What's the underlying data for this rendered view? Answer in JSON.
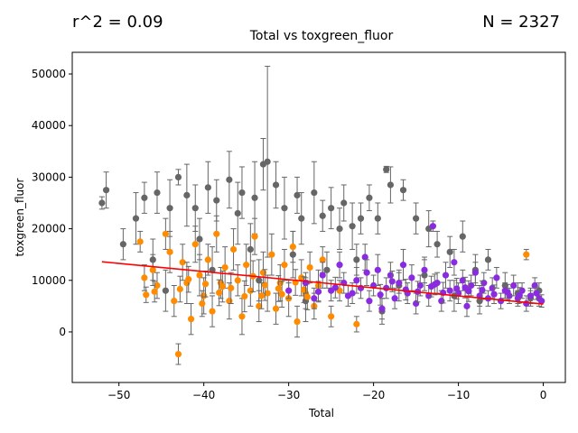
{
  "header": {
    "r2_text": "r^2 = 0.09",
    "n_text": "N = 2327"
  },
  "chart_data": {
    "type": "scatter",
    "title": "Total vs toxgreen_fluor",
    "xlabel": "Total",
    "ylabel": "toxgreen_fluor",
    "xlim": [
      -55.5,
      2.6
    ],
    "ylim": [
      -9800,
      54200
    ],
    "xticks": [
      -50,
      -40,
      -30,
      -20,
      -10,
      0
    ],
    "xtick_labels": [
      "−50",
      "−40",
      "−30",
      "−20",
      "−10",
      "0"
    ],
    "yticks": [
      0,
      10000,
      20000,
      30000,
      40000,
      50000
    ],
    "ytick_labels": [
      "0",
      "10000",
      "20000",
      "30000",
      "40000",
      "50000"
    ],
    "grid": false,
    "legend": "none",
    "regression_line": {
      "x": [
        -52,
        0
      ],
      "y": [
        13600,
        5400
      ],
      "color": "#ff0000"
    },
    "series": [
      {
        "color": "#666666",
        "error_bars": true,
        "points": [
          [
            -52,
            25000,
            1200
          ],
          [
            -51.5,
            27500,
            3500
          ],
          [
            -48,
            22000,
            5000
          ],
          [
            -47,
            26000,
            3000
          ],
          [
            -45.5,
            27000,
            4000
          ],
          [
            -44,
            24000,
            5500
          ],
          [
            -43,
            30000,
            1500
          ],
          [
            -42,
            26500,
            6000
          ],
          [
            -41,
            24000,
            4500
          ],
          [
            -39.5,
            28000,
            5000
          ],
          [
            -38.5,
            25500,
            4000
          ],
          [
            -37,
            29500,
            5500
          ],
          [
            -36,
            23000,
            6000
          ],
          [
            -35.5,
            27000,
            5000
          ],
          [
            -34,
            26000,
            7000
          ],
          [
            -33,
            32500,
            5000
          ],
          [
            -32.5,
            33000,
            18500
          ],
          [
            -31.5,
            28500,
            4500
          ],
          [
            -30.5,
            24000,
            6000
          ],
          [
            -29,
            26500,
            3500
          ],
          [
            -28.5,
            22000,
            5000
          ],
          [
            -27,
            27000,
            6000
          ],
          [
            -26,
            22500,
            3000
          ],
          [
            -25,
            24000,
            4000
          ],
          [
            -24,
            20000,
            4000
          ],
          [
            -23.5,
            25000,
            3500
          ],
          [
            -22.5,
            20500,
            4500
          ],
          [
            -21.5,
            22000,
            3000
          ],
          [
            -20.5,
            26000,
            2500
          ],
          [
            -19.5,
            22000,
            3000
          ],
          [
            -18.5,
            31500,
            600
          ],
          [
            -18,
            28500,
            3500
          ],
          [
            -16.5,
            27500,
            2000
          ],
          [
            -15,
            22000,
            3000
          ],
          [
            -13.5,
            20000,
            3500
          ],
          [
            -12.5,
            17000,
            2500
          ],
          [
            -11,
            15500,
            3000
          ],
          [
            -9.5,
            18500,
            3000
          ],
          [
            -8,
            12000,
            3000
          ],
          [
            -6.5,
            14000,
            2000
          ],
          [
            -4.5,
            9000,
            2500
          ],
          [
            -3,
            7500,
            2000
          ],
          [
            -1.5,
            6500,
            1500
          ],
          [
            -0.5,
            8000,
            1500
          ],
          [
            -49.5,
            17000,
            3000
          ],
          [
            -46,
            14000,
            4000
          ],
          [
            -40.5,
            18000,
            4000
          ],
          [
            -34.5,
            16000,
            5000
          ],
          [
            -29.5,
            15000,
            4500
          ],
          [
            -25.5,
            12000,
            3500
          ],
          [
            -22,
            14000,
            3000
          ],
          [
            -17,
            9000,
            3000
          ],
          [
            -14,
            11000,
            3000
          ],
          [
            -10.5,
            7000,
            3000
          ],
          [
            -7.5,
            6000,
            2500
          ],
          [
            -44.5,
            8000,
            4000
          ],
          [
            -39,
            12000,
            4500
          ],
          [
            -33.5,
            10000,
            4000
          ],
          [
            -28,
            6000,
            4000
          ],
          [
            -19,
            4000,
            2500
          ]
        ]
      },
      {
        "color": "#ff8c00",
        "error_bars": true,
        "points": [
          [
            -47.5,
            17500,
            2000
          ],
          [
            -47,
            10500,
            2500
          ],
          [
            -46.8,
            7200,
            1500
          ],
          [
            -46,
            12000,
            3000
          ],
          [
            -45.5,
            9000,
            2500
          ],
          [
            -44.5,
            19000,
            3000
          ],
          [
            -44,
            15500,
            4000
          ],
          [
            -43.5,
            6000,
            3000
          ],
          [
            -43,
            -4300,
            2000
          ],
          [
            -42.5,
            13500,
            3500
          ],
          [
            -42,
            9500,
            4000
          ],
          [
            -41.5,
            2500,
            3000
          ],
          [
            -41,
            17000,
            3500
          ],
          [
            -40.5,
            11000,
            4000
          ],
          [
            -40,
            7000,
            3500
          ],
          [
            -39.5,
            14000,
            3000
          ],
          [
            -39,
            4000,
            3000
          ],
          [
            -38.5,
            19000,
            3500
          ],
          [
            -38,
            9500,
            3000
          ],
          [
            -37.5,
            12500,
            4000
          ],
          [
            -37,
            6000,
            3500
          ],
          [
            -36.5,
            16000,
            4000
          ],
          [
            -36,
            10000,
            3000
          ],
          [
            -35.5,
            3000,
            3500
          ],
          [
            -35,
            13000,
            4000
          ],
          [
            -34.5,
            8000,
            3000
          ],
          [
            -34,
            18500,
            3500
          ],
          [
            -33.5,
            5000,
            3000
          ],
          [
            -33,
            11500,
            4000
          ],
          [
            -32.5,
            7500,
            3500
          ],
          [
            -32,
            15000,
            4000
          ],
          [
            -31.5,
            4500,
            3000
          ],
          [
            -31,
            9500,
            3500
          ],
          [
            -30.5,
            13000,
            3000
          ],
          [
            -30,
            6500,
            3500
          ],
          [
            -29.5,
            16500,
            3000
          ],
          [
            -29,
            2000,
            3000
          ],
          [
            -28.5,
            10500,
            3500
          ],
          [
            -28,
            7500,
            3000
          ],
          [
            -27.5,
            12500,
            3000
          ],
          [
            -27,
            5000,
            2500
          ],
          [
            -26.5,
            9000,
            3000
          ],
          [
            -26,
            14000,
            2500
          ],
          [
            -25,
            3000,
            2000
          ],
          [
            -24,
            8000,
            2000
          ],
          [
            -22,
            1500,
            1500
          ],
          [
            -45.8,
            7800,
            2000
          ],
          [
            -42.8,
            8300,
            2500
          ],
          [
            -40.2,
            5500,
            2500
          ],
          [
            -37.8,
            8800,
            3000
          ],
          [
            -35.2,
            6900,
            3000
          ],
          [
            -32.8,
            9100,
            3000
          ],
          [
            -30.8,
            7300,
            2500
          ],
          [
            -28.2,
            8200,
            2500
          ],
          [
            -2,
            15000,
            1000
          ],
          [
            -41.8,
            10200,
            2500
          ],
          [
            -38.2,
            7600,
            2500
          ],
          [
            -34.2,
            10800,
            3000
          ],
          [
            -31.2,
            8400,
            2500
          ],
          [
            -29.2,
            9600,
            2500
          ],
          [
            -36.8,
            8500,
            3000
          ],
          [
            -33.2,
            7000,
            2500
          ],
          [
            -27.8,
            6800,
            2500
          ],
          [
            -39.8,
            9300,
            2500
          ]
        ]
      },
      {
        "color": "#8a2be2",
        "error_bars": true,
        "points": [
          [
            -30,
            8000,
            1500
          ],
          [
            -28,
            9500,
            2000
          ],
          [
            -27,
            6500,
            2000
          ],
          [
            -26,
            11000,
            2500
          ],
          [
            -25,
            8000,
            2000
          ],
          [
            -24,
            13000,
            2500
          ],
          [
            -23,
            7000,
            2000
          ],
          [
            -22,
            10000,
            2500
          ],
          [
            -21,
            14500,
            2500
          ],
          [
            -20.5,
            6000,
            2000
          ],
          [
            -20,
            9000,
            2000
          ],
          [
            -19.5,
            12000,
            3000
          ],
          [
            -19,
            4500,
            2000
          ],
          [
            -18.5,
            8500,
            2000
          ],
          [
            -18,
            11000,
            2500
          ],
          [
            -17.5,
            6500,
            2000
          ],
          [
            -17,
            9500,
            2000
          ],
          [
            -16.5,
            13000,
            3000
          ],
          [
            -16,
            7500,
            2000
          ],
          [
            -15.5,
            10500,
            2500
          ],
          [
            -15,
            5500,
            2000
          ],
          [
            -14.5,
            9000,
            2000
          ],
          [
            -14,
            12000,
            2500
          ],
          [
            -13.5,
            7000,
            2000
          ],
          [
            -13,
            20500,
            1000
          ],
          [
            -12.5,
            9500,
            2000
          ],
          [
            -12,
            6000,
            2000
          ],
          [
            -11.5,
            11000,
            2500
          ],
          [
            -11,
            8000,
            2000
          ],
          [
            -10.5,
            13500,
            2500
          ],
          [
            -10,
            7500,
            2000
          ],
          [
            -9.5,
            10000,
            2000
          ],
          [
            -9,
            5000,
            2000
          ],
          [
            -8.5,
            9000,
            2000
          ],
          [
            -8,
            11500,
            2000
          ],
          [
            -7.5,
            7000,
            2000
          ],
          [
            -7,
            9500,
            2000
          ],
          [
            -6.5,
            6500,
            1500
          ],
          [
            -6,
            8500,
            2000
          ],
          [
            -5.5,
            10500,
            2000
          ],
          [
            -5,
            6000,
            1500
          ],
          [
            -4.5,
            8000,
            1500
          ],
          [
            -4,
            7000,
            1500
          ],
          [
            -3.5,
            9000,
            2000
          ],
          [
            -3,
            6500,
            1500
          ],
          [
            -2.5,
            8000,
            1500
          ],
          [
            -2,
            5500,
            1500
          ],
          [
            -1.5,
            7000,
            1500
          ],
          [
            -1,
            9000,
            1500
          ],
          [
            -0.5,
            6500,
            1500
          ],
          [
            -0.2,
            6000,
            1200
          ],
          [
            -0.8,
            7500,
            1200
          ],
          [
            -21.5,
            8500,
            2000
          ],
          [
            -23.5,
            9500,
            2000
          ],
          [
            -22.5,
            7500,
            2000
          ],
          [
            -20.8,
            11500,
            2500
          ],
          [
            -19.2,
            7200,
            2000
          ],
          [
            -17.8,
            9800,
            2000
          ],
          [
            -16.2,
            8200,
            2000
          ],
          [
            -14.8,
            7800,
            2000
          ],
          [
            -13.2,
            8800,
            2000
          ],
          [
            -11.8,
            7600,
            2000
          ],
          [
            -10.2,
            8400,
            2000
          ],
          [
            -8.8,
            7900,
            2000
          ],
          [
            -7.2,
            8100,
            1800
          ],
          [
            -5.8,
            7300,
            1800
          ],
          [
            -4.2,
            7700,
            1500
          ],
          [
            -2.8,
            7100,
            1500
          ],
          [
            -26.5,
            7800,
            2000
          ],
          [
            -24.5,
            8600,
            2000
          ],
          [
            -12.8,
            9200,
            2000
          ],
          [
            -9.2,
            8600,
            2000
          ]
        ]
      }
    ]
  }
}
